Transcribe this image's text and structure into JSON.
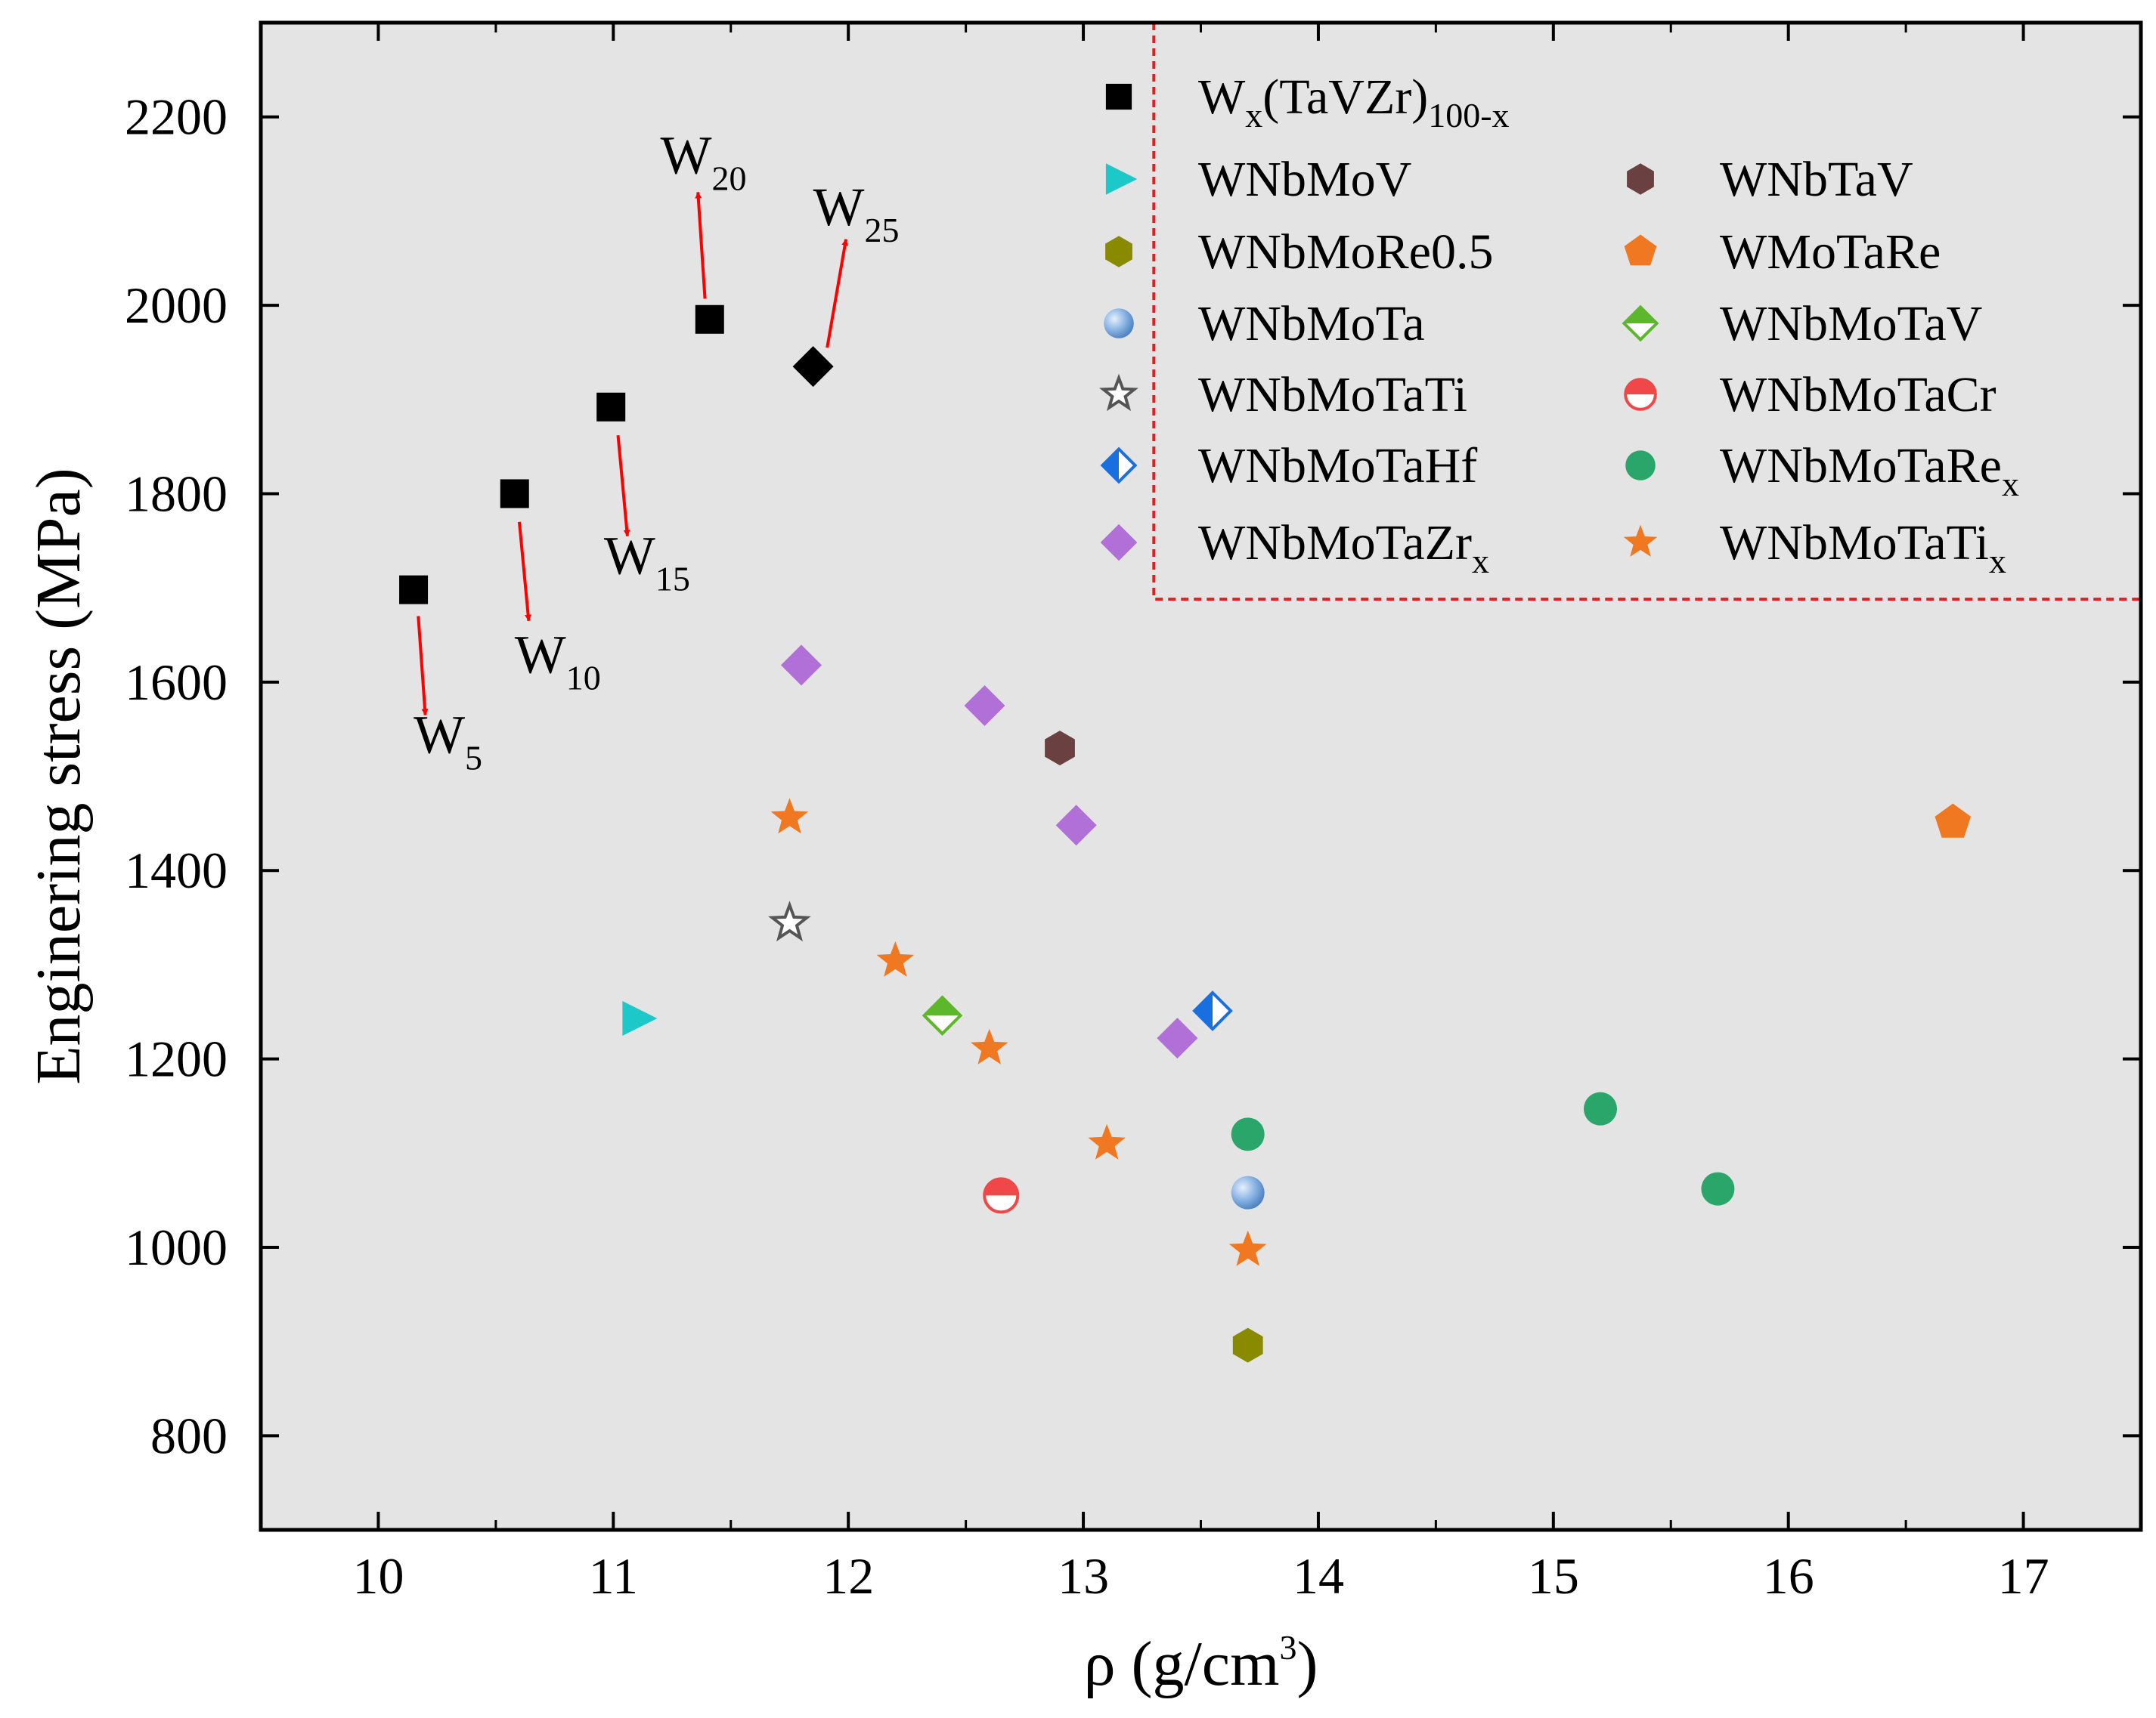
{
  "chart_data": {
    "type": "scatter",
    "xlabel": "ρ (g/cm",
    "xlabel_sup": "3",
    "xlabel_close": ")",
    "ylabel": "Enginering stress (MPa)",
    "xlim": [
      9.5,
      17.5
    ],
    "ylim": [
      700,
      2300
    ],
    "x_ticks": [
      10,
      11,
      12,
      13,
      14,
      15,
      16,
      17
    ],
    "x_tick_labels": [
      "10",
      "11",
      "12",
      "13",
      "14",
      "15",
      "16",
      "17"
    ],
    "y_ticks": [
      800,
      1000,
      1200,
      1400,
      1600,
      1800,
      2000,
      2200
    ],
    "y_tick_labels": [
      "800",
      "1000",
      "1200",
      "1400",
      "1600",
      "1800",
      "2000",
      "2200"
    ],
    "grid": false,
    "legend_position": "top-right",
    "series": [
      {
        "name": "Wx(TaVZr)100-x",
        "label_main": "W",
        "label_sub1": "x",
        "label_mid": "(TaVZr)",
        "label_sub2": "100-x",
        "marker": "square",
        "color": "#000000",
        "points": [
          [
            10.15,
            1698
          ],
          [
            10.58,
            1800
          ],
          [
            10.99,
            1892
          ],
          [
            11.41,
            1985
          ]
        ]
      },
      {
        "name": "W25 (Wx(TaVZr)100-x)",
        "in_legend": false,
        "marker": "diamond",
        "color": "#000000",
        "points": [
          [
            11.85,
            1935
          ]
        ]
      },
      {
        "name": "WNbMoV",
        "marker": "triangle-right",
        "color": "#1cc8c8",
        "points": [
          [
            11.1,
            1243
          ]
        ]
      },
      {
        "name": "WNbMoRe0.5",
        "marker": "hexagon",
        "color": "#8a8a00",
        "points": [
          [
            13.7,
            896
          ]
        ]
      },
      {
        "name": "WNbMoTa",
        "marker": "sphere",
        "color": "#6a9fd8",
        "points": [
          [
            13.7,
            1058
          ]
        ]
      },
      {
        "name": "WNbMoTaTi",
        "marker": "star-open",
        "color": "#555555",
        "points": [
          [
            11.75,
            1344
          ]
        ]
      },
      {
        "name": "WNbMoTaHf",
        "marker": "diamond-half",
        "color": "#1a6fe0",
        "points": [
          [
            13.55,
            1251
          ]
        ]
      },
      {
        "name": "WNbMoTaZrx",
        "label_main": "WNbMoTaZr",
        "label_sub": "x",
        "marker": "diamond",
        "color": "#b070d8",
        "points": [
          [
            11.8,
            1618
          ],
          [
            12.58,
            1575
          ],
          [
            12.97,
            1448
          ],
          [
            13.4,
            1222
          ]
        ]
      },
      {
        "name": "WNbTaV",
        "marker": "hexagon",
        "color": "#6b4040",
        "points": [
          [
            12.9,
            1530
          ]
        ]
      },
      {
        "name": "WMoTaRe",
        "marker": "pentagon",
        "color": "#f07820",
        "points": [
          [
            16.7,
            1451
          ]
        ]
      },
      {
        "name": "WNbMoTaV",
        "marker": "diamond-half-bottom",
        "color": "#5cb82a",
        "points": [
          [
            12.4,
            1246
          ]
        ]
      },
      {
        "name": "WNbMoTaCr",
        "marker": "circle-half",
        "color": "#f04848",
        "points": [
          [
            12.65,
            1055
          ]
        ]
      },
      {
        "name": "WNbMoTaRex",
        "label_main": "WNbMoTaRe",
        "label_sub": "x",
        "marker": "circle",
        "color": "#2aa66a",
        "points": [
          [
            13.7,
            1120
          ],
          [
            15.2,
            1147
          ],
          [
            15.7,
            1062
          ]
        ]
      },
      {
        "name": "WNbMoTaTix",
        "label_main": "WNbMoTaTi",
        "label_sub": "x",
        "marker": "star",
        "color": "#f07820",
        "points": [
          [
            11.75,
            1456
          ],
          [
            12.2,
            1304
          ],
          [
            12.6,
            1211
          ],
          [
            13.1,
            1110
          ],
          [
            13.7,
            997
          ]
        ]
      }
    ],
    "annotations": [
      {
        "main": "W",
        "sub": "5",
        "point": [
          10.15,
          1698
        ],
        "text_at": [
          10.15,
          1525
        ],
        "arrow_from": [
          10.17,
          1670
        ],
        "arrow_to": [
          10.2,
          1565
        ]
      },
      {
        "main": "W",
        "sub": "10",
        "point": [
          10.58,
          1800
        ],
        "text_at": [
          10.58,
          1610
        ],
        "arrow_from": [
          10.6,
          1770
        ],
        "arrow_to": [
          10.64,
          1665
        ]
      },
      {
        "main": "W",
        "sub": "15",
        "point": [
          10.99,
          1892
        ],
        "text_at": [
          10.96,
          1715
        ],
        "arrow_from": [
          11.02,
          1862
        ],
        "arrow_to": [
          11.06,
          1755
        ]
      },
      {
        "main": "W",
        "sub": "20",
        "point": [
          11.41,
          1985
        ],
        "text_at": [
          11.2,
          2140
        ],
        "arrow_from": [
          11.39,
          2007
        ],
        "arrow_to": [
          11.36,
          2120
        ]
      },
      {
        "main": "W",
        "sub": "25",
        "point": [
          11.85,
          1935
        ],
        "text_at": [
          11.85,
          2085
        ],
        "arrow_from": [
          11.91,
          1955
        ],
        "arrow_to": [
          11.99,
          2070
        ]
      }
    ]
  }
}
